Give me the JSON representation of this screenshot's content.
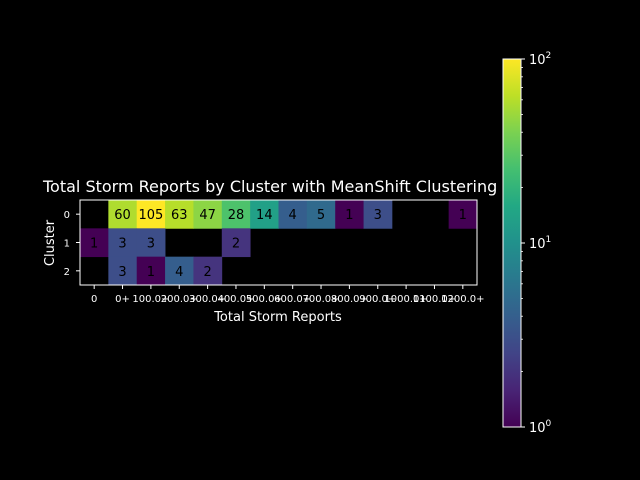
{
  "chart_data": {
    "type": "heatmap",
    "title": "Total Storm Reports by Cluster with MeanShift Clustering",
    "xlabel": "Total Storm Reports",
    "ylabel": "Cluster",
    "x_categories": [
      "0",
      "0+",
      "100.0+",
      "200.0+",
      "300.0+",
      "400.0+",
      "500.0+",
      "600.0+",
      "700.0+",
      "800.0+",
      "900.0+",
      "1000.0+",
      "1100.0+",
      "1200.0+"
    ],
    "y_categories": [
      "0",
      "1",
      "2"
    ],
    "values": [
      [
        null,
        60,
        105,
        63,
        47,
        28,
        14,
        4,
        5,
        1,
        3,
        null,
        null,
        1
      ],
      [
        1,
        3,
        3,
        null,
        null,
        2,
        null,
        null,
        null,
        null,
        null,
        null,
        null,
        null
      ],
      [
        null,
        3,
        1,
        4,
        2,
        null,
        null,
        null,
        null,
        null,
        null,
        null,
        null,
        null
      ]
    ],
    "colorbar": {
      "scale": "log",
      "colormap": "viridis",
      "range": [
        1,
        105
      ],
      "ticks": [
        {
          "value": 1,
          "base": "10",
          "exp": "0"
        },
        {
          "value": 10,
          "base": "10",
          "exp": "1"
        },
        {
          "value": 100,
          "base": "10",
          "exp": "2"
        }
      ]
    },
    "colors": {
      "background": "#000000",
      "foreground": "#ffffff",
      "cell_text": "#000000"
    }
  }
}
